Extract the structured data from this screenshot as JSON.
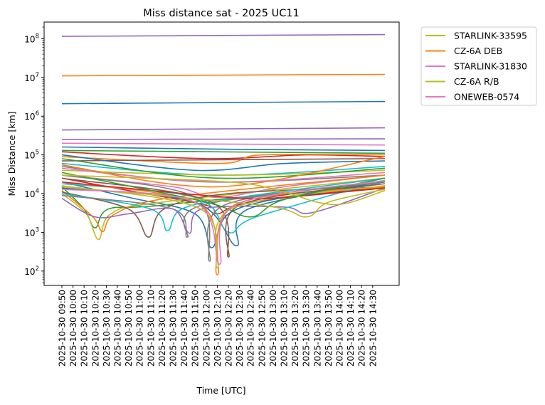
{
  "chart_data": {
    "type": "line",
    "title": "Miss distance sat - 2025 UC11",
    "xlabel": "Time [UTC]",
    "ylabel": "Miss Distance [km]",
    "yscale": "log",
    "ylim": [
      40,
      280000000
    ],
    "x_unit": "minutes after 2025-10-30 09:50 UTC",
    "xlim": [
      -15,
      305
    ],
    "xticks": [
      0,
      10,
      20,
      30,
      40,
      50,
      60,
      70,
      80,
      90,
      100,
      110,
      120,
      130,
      140,
      150,
      160,
      170,
      180,
      190,
      200,
      210,
      220,
      230,
      240,
      250,
      260,
      270,
      280
    ],
    "xtick_labels": [
      "2025-10-30 09:50",
      "2025-10-30 10:00",
      "2025-10-30 10:10",
      "2025-10-30 10:20",
      "2025-10-30 10:30",
      "2025-10-30 10:40",
      "2025-10-30 10:50",
      "2025-10-30 11:00",
      "2025-10-30 11:10",
      "2025-10-30 11:20",
      "2025-10-30 11:30",
      "2025-10-30 11:40",
      "2025-10-30 11:50",
      "2025-10-30 12:00",
      "2025-10-30 12:10",
      "2025-10-30 12:20",
      "2025-10-30 12:30",
      "2025-10-30 12:40",
      "2025-10-30 12:50",
      "2025-10-30 13:00",
      "2025-10-30 13:10",
      "2025-10-30 13:20",
      "2025-10-30 13:30",
      "2025-10-30 13:40",
      "2025-10-30 13:50",
      "2025-10-30 14:00",
      "2025-10-30 14:10",
      "2025-10-30 14:20",
      "2025-10-30 14:30"
    ],
    "yticks": [
      100,
      1000,
      10000,
      100000,
      1000000,
      10000000,
      100000000
    ],
    "ytick_labels": [
      {
        "base": "10",
        "exp": "2"
      },
      {
        "base": "10",
        "exp": "3"
      },
      {
        "base": "10",
        "exp": "4"
      },
      {
        "base": "10",
        "exp": "5"
      },
      {
        "base": "10",
        "exp": "6"
      },
      {
        "base": "10",
        "exp": "7"
      },
      {
        "base": "10",
        "exp": "8"
      }
    ],
    "legend_placement": "outside-top-right",
    "legend": [
      {
        "label": "STARLINK-33595",
        "color": "#bcbd22"
      },
      {
        "label": "CZ-6A DEB",
        "color": "#ff7f0e"
      },
      {
        "label": "STARLINK-31830",
        "color": "#e377c2"
      },
      {
        "label": "CZ-6A R/B",
        "color": "#bcbd22"
      },
      {
        "label": "ONEWEB-0574",
        "color": "#e377c2"
      }
    ],
    "series": [
      {
        "color": "#9467bd",
        "points": [
          [
            0,
            115000000
          ],
          [
            291,
            128000000
          ]
        ]
      },
      {
        "color": "#ff7f0e",
        "points": [
          [
            0,
            11000000
          ],
          [
            291,
            12000000
          ]
        ]
      },
      {
        "color": "#1f77b4",
        "points": [
          [
            0,
            2100000
          ],
          [
            291,
            2400000
          ]
        ]
      },
      {
        "color": "#9467bd",
        "points": [
          [
            0,
            440000
          ],
          [
            291,
            500000
          ]
        ]
      },
      {
        "color": "#9467bd",
        "points": [
          [
            0,
            250000
          ],
          [
            291,
            260000
          ]
        ]
      },
      {
        "color": "#e377c2",
        "points": [
          [
            0,
            200000
          ],
          [
            291,
            180000
          ]
        ]
      },
      {
        "color": "#1f77b4",
        "points": [
          [
            0,
            160000
          ],
          [
            150,
            140000
          ],
          [
            291,
            130000
          ]
        ]
      },
      {
        "color": "#2ca02c",
        "points": [
          [
            0,
            130000
          ],
          [
            291,
            110000
          ]
        ]
      },
      {
        "color": "#d62728",
        "points": [
          [
            0,
            120000
          ],
          [
            130,
            80000
          ],
          [
            220,
            100000
          ],
          [
            291,
            90000
          ]
        ]
      },
      {
        "color": "#ff7f0e",
        "points": [
          [
            0,
            90000
          ],
          [
            140,
            60000
          ],
          [
            180,
            100000
          ],
          [
            291,
            100000
          ]
        ]
      },
      {
        "color": "#8c564b",
        "points": [
          [
            0,
            70000
          ],
          [
            291,
            80000
          ]
        ]
      },
      {
        "color": "#17becf",
        "points": [
          [
            0,
            60000
          ],
          [
            140,
            30000
          ],
          [
            291,
            50000
          ]
        ]
      },
      {
        "color": "#7f7f7f",
        "points": [
          [
            0,
            50000
          ],
          [
            130,
            20000
          ],
          [
            291,
            30000
          ]
        ]
      },
      {
        "color": "#bcbd22",
        "points": [
          [
            0,
            40000
          ],
          [
            150,
            30000
          ],
          [
            291,
            40000
          ]
        ]
      },
      {
        "color": "#1f77b4",
        "points": [
          [
            0,
            100000
          ],
          [
            120,
            40000
          ],
          [
            200,
            60000
          ],
          [
            291,
            70000
          ]
        ]
      },
      {
        "color": "#2ca02c",
        "points": [
          [
            0,
            80000
          ],
          [
            140,
            25000
          ],
          [
            291,
            45000
          ]
        ]
      },
      {
        "color": "#e377c2",
        "points": [
          [
            0,
            30000
          ],
          [
            100,
            15000
          ],
          [
            140,
            8000
          ],
          [
            200,
            15000
          ],
          [
            291,
            30000
          ]
        ]
      },
      {
        "color": "#d62728",
        "points": [
          [
            0,
            25000
          ],
          [
            60,
            12000
          ],
          [
            130,
            5000
          ],
          [
            140,
            3000
          ],
          [
            170,
            6000
          ],
          [
            291,
            15000
          ]
        ]
      },
      {
        "color": "#1f77b4",
        "points": [
          [
            0,
            20000
          ],
          [
            60,
            8000
          ],
          [
            120,
            3000
          ],
          [
            135,
            400
          ],
          [
            150,
            3000
          ],
          [
            200,
            8000
          ],
          [
            291,
            20000
          ]
        ]
      },
      {
        "color": "#2ca02c",
        "points": [
          [
            0,
            15000
          ],
          [
            20,
            4000
          ],
          [
            30,
            1300
          ],
          [
            42,
            4000
          ],
          [
            90,
            5000
          ],
          [
            291,
            20000
          ]
        ]
      },
      {
        "color": "#bcbd22",
        "points": [
          [
            0,
            10000
          ],
          [
            22,
            3000
          ],
          [
            33,
            650
          ],
          [
            44,
            3000
          ],
          [
            90,
            6000
          ],
          [
            291,
            25000
          ]
        ]
      },
      {
        "color": "#ff7f0e",
        "points": [
          [
            0,
            12000
          ],
          [
            28,
            2500
          ],
          [
            37,
            1050
          ],
          [
            48,
            3000
          ],
          [
            100,
            8000
          ],
          [
            291,
            30000
          ]
        ]
      },
      {
        "color": "#8c564b",
        "points": [
          [
            0,
            11000
          ],
          [
            60,
            4000
          ],
          [
            78,
            750
          ],
          [
            92,
            4000
          ],
          [
            150,
            10000
          ],
          [
            291,
            15000
          ]
        ]
      },
      {
        "color": "#17becf",
        "points": [
          [
            0,
            10000
          ],
          [
            80,
            4000
          ],
          [
            95,
            1100
          ],
          [
            108,
            4000
          ],
          [
            160,
            8000
          ],
          [
            291,
            25000
          ]
        ]
      },
      {
        "color": "#7f7f7f",
        "points": [
          [
            0,
            9000
          ],
          [
            100,
            4000
          ],
          [
            113,
            750
          ],
          [
            126,
            5000
          ],
          [
            291,
            20000
          ]
        ]
      },
      {
        "color": "#9467bd",
        "points": [
          [
            0,
            7500
          ],
          [
            30,
            2500
          ],
          [
            60,
            3000
          ],
          [
            100,
            4000
          ],
          [
            115,
            950
          ],
          [
            126,
            4000
          ],
          [
            200,
            4500
          ],
          [
            225,
            3200
          ],
          [
            291,
            14000
          ]
        ]
      },
      {
        "color": "#1f77b4",
        "points": [
          [
            0,
            14000
          ],
          [
            120,
            6000
          ],
          [
            157,
            450
          ],
          [
            168,
            4000
          ],
          [
            291,
            20000
          ]
        ]
      },
      {
        "color": "#17becf",
        "points": [
          [
            0,
            18000
          ],
          [
            120,
            8000
          ],
          [
            150,
            1000
          ],
          [
            175,
            2500
          ],
          [
            291,
            22000
          ]
        ]
      },
      {
        "color": "#7f7f7f",
        "points": [
          [
            0,
            30000
          ],
          [
            120,
            8000
          ],
          [
            133,
            180
          ],
          [
            146,
            5000
          ],
          [
            291,
            20000
          ]
        ]
      },
      {
        "color": "#ff7f0e",
        "points": [
          [
            0,
            20000
          ],
          [
            125,
            5000
          ],
          [
            140,
            80
          ],
          [
            155,
            5000
          ],
          [
            291,
            15000
          ]
        ]
      },
      {
        "color": "#8c564b",
        "points": [
          [
            0,
            25000
          ],
          [
            135,
            6000
          ],
          [
            150,
            230
          ],
          [
            160,
            5000
          ],
          [
            291,
            18000
          ]
        ]
      },
      {
        "color": "#bcbd22",
        "points": [
          [
            0,
            16000
          ],
          [
            125,
            4000
          ],
          [
            140,
            120
          ],
          [
            152,
            4000
          ],
          [
            291,
            16000
          ]
        ]
      },
      {
        "color": "#d62728",
        "points": [
          [
            0,
            20000
          ],
          [
            150,
            8000
          ],
          [
            200,
            8000
          ],
          [
            291,
            14000
          ]
        ]
      },
      {
        "color": "#2ca02c",
        "points": [
          [
            0,
            35000
          ],
          [
            130,
            6000
          ],
          [
            170,
            2500
          ],
          [
            200,
            7000
          ],
          [
            291,
            25000
          ]
        ]
      },
      {
        "color": "#bcbd22",
        "label": "CZ-6A R/B",
        "points": [
          [
            0,
            15000
          ],
          [
            180,
            5000
          ],
          [
            220,
            2500
          ],
          [
            240,
            6000
          ],
          [
            291,
            13000
          ]
        ]
      },
      {
        "color": "#e377c2",
        "label": "ONEWEB-0574",
        "points": [
          [
            0,
            13000
          ],
          [
            120,
            6000
          ],
          [
            142,
            150
          ],
          [
            156,
            5000
          ],
          [
            291,
            22000
          ]
        ]
      },
      {
        "color": "#e377c2",
        "label": "STARLINK-31830",
        "points": [
          [
            0,
            45000
          ],
          [
            140,
            20000
          ],
          [
            291,
            35000
          ]
        ]
      },
      {
        "color": "#ff7f0e",
        "label": "CZ-6A DEB",
        "points": [
          [
            0,
            55000
          ],
          [
            140,
            15000
          ],
          [
            291,
            90000
          ]
        ]
      },
      {
        "color": "#bcbd22",
        "label": "STARLINK-33595",
        "points": [
          [
            0,
            30000
          ],
          [
            150,
            20000
          ],
          [
            200,
            11000
          ],
          [
            230,
            6000
          ],
          [
            255,
            5500
          ],
          [
            291,
            12000
          ]
        ]
      }
    ]
  }
}
